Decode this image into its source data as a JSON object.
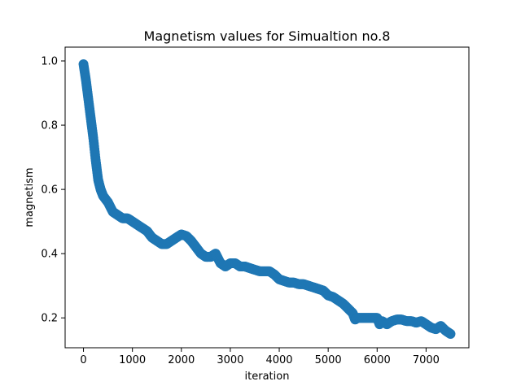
{
  "chart_data": {
    "type": "scatter",
    "title": "Magnetism values for Simualtion no.8",
    "xlabel": "iteration",
    "ylabel": "magnetism",
    "xlim": [
      -375,
      7875
    ],
    "ylim": [
      0.107,
      1.043
    ],
    "xticks": [
      0,
      1000,
      2000,
      3000,
      4000,
      5000,
      6000,
      7000
    ],
    "xtick_labels": [
      "0",
      "1000",
      "2000",
      "3000",
      "4000",
      "5000",
      "6000",
      "7000"
    ],
    "yticks": [
      0.2,
      0.4,
      0.6,
      0.8,
      1.0
    ],
    "ytick_labels": [
      "0.2",
      "0.4",
      "0.6",
      "0.8",
      "1.0"
    ],
    "grid": false,
    "marker_color": "#1f77b4",
    "series": [
      {
        "x": [
          0,
          50,
          100,
          150,
          200,
          250,
          300,
          350,
          400,
          500,
          600,
          700,
          800,
          900,
          1000,
          1100,
          1200,
          1300,
          1400,
          1500,
          1600,
          1700,
          1800,
          1900,
          2000,
          2100,
          2200,
          2300,
          2400,
          2500,
          2600,
          2700,
          2800,
          2900,
          3000,
          3100,
          3200,
          3300,
          3400,
          3500,
          3600,
          3700,
          3800,
          3900,
          4000,
          4100,
          4200,
          4300,
          4400,
          4500,
          4600,
          4700,
          4800,
          4900,
          5000,
          5100,
          5200,
          5300,
          5400,
          5500,
          5550,
          5600,
          5700,
          5800,
          5900,
          6000,
          6050,
          6100,
          6200,
          6300,
          6400,
          6500,
          6600,
          6700,
          6800,
          6900,
          7000,
          7100,
          7200,
          7300,
          7400,
          7500
        ],
        "y": [
          0.99,
          0.94,
          0.88,
          0.82,
          0.76,
          0.69,
          0.63,
          0.6,
          0.58,
          0.56,
          0.53,
          0.52,
          0.51,
          0.51,
          0.5,
          0.49,
          0.48,
          0.47,
          0.45,
          0.44,
          0.43,
          0.43,
          0.44,
          0.45,
          0.46,
          0.455,
          0.44,
          0.42,
          0.4,
          0.39,
          0.39,
          0.4,
          0.37,
          0.36,
          0.37,
          0.37,
          0.36,
          0.36,
          0.355,
          0.35,
          0.345,
          0.345,
          0.345,
          0.335,
          0.32,
          0.315,
          0.31,
          0.31,
          0.305,
          0.305,
          0.3,
          0.295,
          0.29,
          0.285,
          0.27,
          0.265,
          0.255,
          0.245,
          0.23,
          0.215,
          0.195,
          0.2,
          0.2,
          0.2,
          0.2,
          0.2,
          0.18,
          0.19,
          0.18,
          0.19,
          0.195,
          0.195,
          0.19,
          0.19,
          0.185,
          0.19,
          0.18,
          0.17,
          0.165,
          0.175,
          0.16,
          0.15
        ]
      }
    ]
  }
}
